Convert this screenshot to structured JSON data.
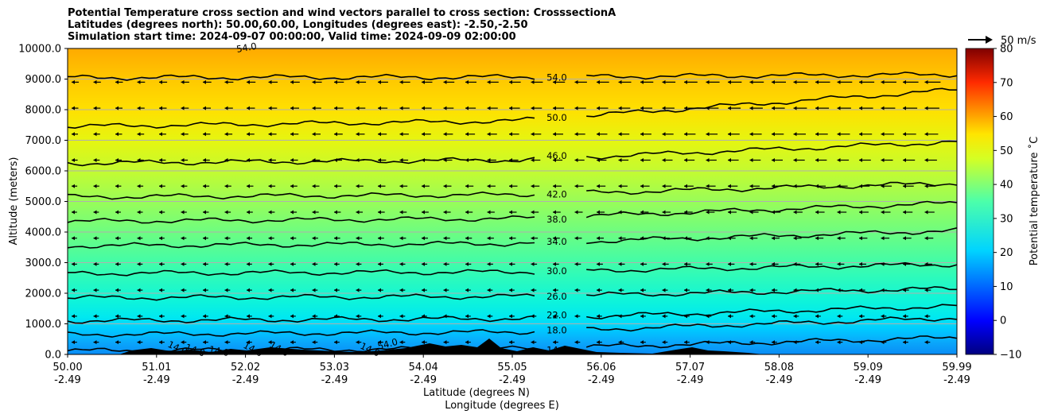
{
  "title": {
    "line1": "Potential Temperature cross section and wind vectors parallel to cross section: CrosssectionA",
    "line2": "Latitudes (degrees north): 50.00,60.00, Longitudes (degrees east): -2.50,-2.50",
    "line3": "Simulation start time: 2024-09-07 00:00:00, Valid time: 2024-09-09 02:00:00"
  },
  "chart_data": {
    "type": "contour",
    "xlabel_lat": "Latitude (degrees N)",
    "xlabel_lon": "Longitude (degrees E)",
    "ylabel": "Altitude (meters)",
    "ylim": [
      0,
      10000
    ],
    "y_ticks": [
      "0.0",
      "1000.0",
      "2000.0",
      "3000.0",
      "4000.0",
      "5000.0",
      "6000.0",
      "7000.0",
      "8000.0",
      "9000.0",
      "10000.0"
    ],
    "y_tick_values": [
      0,
      1000,
      2000,
      3000,
      4000,
      5000,
      6000,
      7000,
      8000,
      9000,
      10000
    ],
    "x_ticks": [
      {
        "lat": "50.00",
        "lon": "-2.49"
      },
      {
        "lat": "51.01",
        "lon": "-2.49"
      },
      {
        "lat": "52.02",
        "lon": "-2.49"
      },
      {
        "lat": "53.03",
        "lon": "-2.49"
      },
      {
        "lat": "54.04",
        "lon": "-2.49"
      },
      {
        "lat": "55.05",
        "lon": "-2.49"
      },
      {
        "lat": "56.06",
        "lon": "-2.49"
      },
      {
        "lat": "57.07",
        "lon": "-2.49"
      },
      {
        "lat": "58.08",
        "lon": "-2.49"
      },
      {
        "lat": "59.09",
        "lon": "-2.49"
      },
      {
        "lat": "59.99",
        "lon": "-2.49"
      }
    ],
    "grid": "horizontal",
    "colorbar": {
      "label": "Potential temperature $^\\circ$C",
      "label_text": "Potential temperature ˚C",
      "range": [
        -10,
        80
      ],
      "ticks": [
        "−10",
        "0",
        "10",
        "20",
        "30",
        "40",
        "50",
        "60",
        "70",
        "80"
      ],
      "tick_values": [
        -10,
        0,
        10,
        20,
        30,
        40,
        50,
        60,
        70,
        80
      ],
      "colormap": "jet"
    },
    "quiver_key": "50 m/s",
    "contour_levels": [
      {
        "level": 14,
        "label": "14.0",
        "left_m": 120,
        "right_m": 550
      },
      {
        "level": 18,
        "label": "18.0",
        "left_m": 650,
        "right_m": 1200
      },
      {
        "level": 22,
        "label": "22.0",
        "left_m": 1100,
        "right_m": 1580
      },
      {
        "level": 26,
        "label": "26.0",
        "left_m": 1850,
        "right_m": 2150
      },
      {
        "level": 30,
        "label": "30.0",
        "left_m": 2650,
        "right_m": 2950
      },
      {
        "level": 34,
        "label": "34.0",
        "left_m": 3550,
        "right_m": 4050
      },
      {
        "level": 38,
        "label": "38.0",
        "left_m": 4350,
        "right_m": 4950
      },
      {
        "level": 42,
        "label": "42.0",
        "left_m": 5150,
        "right_m": 5600
      },
      {
        "level": 46,
        "label": "46.0",
        "left_m": 6250,
        "right_m": 6950
      },
      {
        "level": 50,
        "label": "50.0",
        "left_m": 7450,
        "right_m": 8650
      },
      {
        "level": 54,
        "label": "54.0",
        "left_m": 9050,
        "right_m": 9150
      }
    ],
    "extra_labels": [
      "14.0",
      "14.0",
      "14.0",
      "14.0",
      "14.0",
      "14.0",
      "54.0",
      "54.0"
    ]
  },
  "colors": {
    "background": "#ffffff",
    "contour": "#000000",
    "terrain": "#000000",
    "grid": "#b0b0b0"
  }
}
